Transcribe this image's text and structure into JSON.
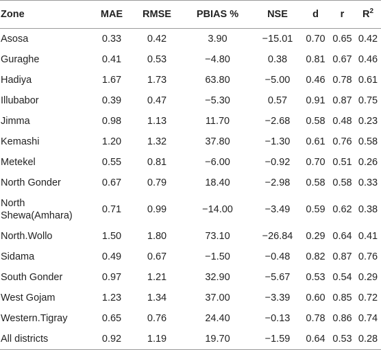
{
  "table": {
    "headers": [
      "Zone",
      "MAE",
      "RMSE",
      "PBIAS %",
      "NSE",
      "d",
      "r",
      "R"
    ],
    "r2_sup": "2",
    "rows": [
      {
        "zone": "Asosa",
        "mae": "0.33",
        "rmse": "0.42",
        "pbias": "3.90",
        "nse": "−15.01",
        "d": "0.70",
        "r": "0.65",
        "r2": "0.42"
      },
      {
        "zone": "Guraghe",
        "mae": "0.41",
        "rmse": "0.53",
        "pbias": "−4.80",
        "nse": "0.38",
        "d": "0.81",
        "r": "0.67",
        "r2": "0.46"
      },
      {
        "zone": "Hadiya",
        "mae": "1.67",
        "rmse": "1.73",
        "pbias": "63.80",
        "nse": "−5.00",
        "d": "0.46",
        "r": "0.78",
        "r2": "0.61"
      },
      {
        "zone": "Illubabor",
        "mae": "0.39",
        "rmse": "0.47",
        "pbias": "−5.30",
        "nse": "0.57",
        "d": "0.91",
        "r": "0.87",
        "r2": "0.75"
      },
      {
        "zone": "Jimma",
        "mae": "0.98",
        "rmse": "1.13",
        "pbias": "11.70",
        "nse": "−2.68",
        "d": "0.58",
        "r": "0.48",
        "r2": "0.23"
      },
      {
        "zone": "Kemashi",
        "mae": "1.20",
        "rmse": "1.32",
        "pbias": "37.80",
        "nse": "−1.30",
        "d": "0.61",
        "r": "0.76",
        "r2": "0.58"
      },
      {
        "zone": "Metekel",
        "mae": "0.55",
        "rmse": "0.81",
        "pbias": "−6.00",
        "nse": "−0.92",
        "d": "0.70",
        "r": "0.51",
        "r2": "0.26"
      },
      {
        "zone": "North Gonder",
        "mae": "0.67",
        "rmse": "0.79",
        "pbias": "18.40",
        "nse": "−2.98",
        "d": "0.58",
        "r": "0.58",
        "r2": "0.33"
      },
      {
        "zone": "North Shewa(Amhara)",
        "mae": "0.71",
        "rmse": "0.99",
        "pbias": "−14.00",
        "nse": "−3.49",
        "d": "0.59",
        "r": "0.62",
        "r2": "0.38"
      },
      {
        "zone": "North.Wollo",
        "mae": "1.50",
        "rmse": "1.80",
        "pbias": "73.10",
        "nse": "−26.84",
        "d": "0.29",
        "r": "0.64",
        "r2": "0.41"
      },
      {
        "zone": "Sidama",
        "mae": "0.49",
        "rmse": "0.67",
        "pbias": "−1.50",
        "nse": "−0.48",
        "d": "0.82",
        "r": "0.87",
        "r2": "0.76"
      },
      {
        "zone": "South Gonder",
        "mae": "0.97",
        "rmse": "1.21",
        "pbias": "32.90",
        "nse": "−5.67",
        "d": "0.53",
        "r": "0.54",
        "r2": "0.29"
      },
      {
        "zone": "West Gojam",
        "mae": "1.23",
        "rmse": "1.34",
        "pbias": "37.00",
        "nse": "−3.39",
        "d": "0.60",
        "r": "0.85",
        "r2": "0.72"
      },
      {
        "zone": "Western.Tigray",
        "mae": "0.65",
        "rmse": "0.76",
        "pbias": "24.40",
        "nse": "−0.13",
        "d": "0.78",
        "r": "0.86",
        "r2": "0.74"
      },
      {
        "zone": "All districts",
        "mae": "0.92",
        "rmse": "1.19",
        "pbias": "19.70",
        "nse": "−1.59",
        "d": "0.64",
        "r": "0.53",
        "r2": "0.28"
      }
    ]
  }
}
